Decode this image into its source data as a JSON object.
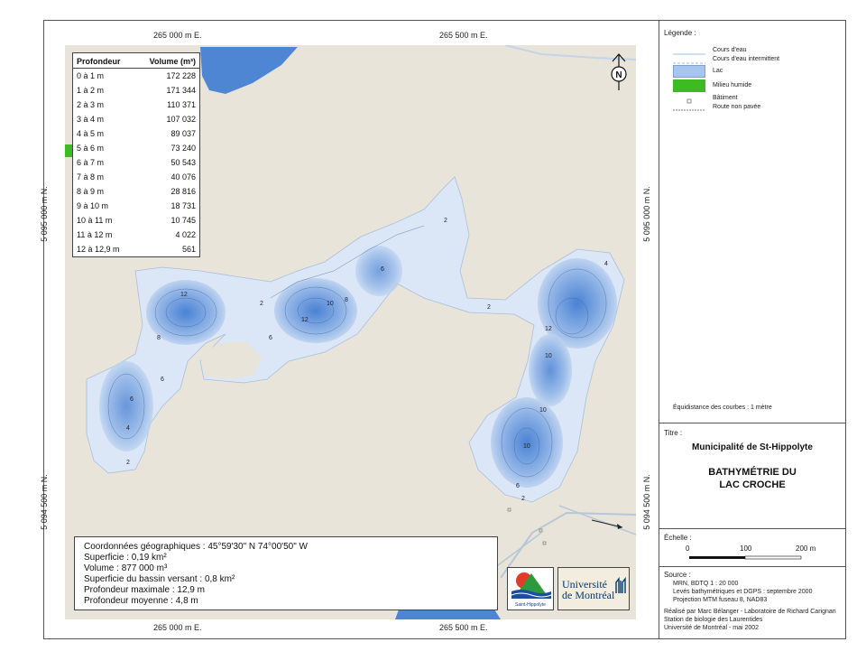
{
  "map": {
    "coords_top": [
      "265 000 m E.",
      "265 500 m E."
    ],
    "coords_bottom": [
      "265 000 m E.",
      "265 500 m E."
    ],
    "coords_left": [
      "5 095 000 m N.",
      "5 094 500 m N."
    ],
    "coords_right": [
      "5 095 000 m N.",
      "5 094 500 m N."
    ],
    "north_label": "N",
    "contour_labels": [
      "2",
      "2",
      "2",
      "2",
      "2",
      "4",
      "4",
      "6",
      "6",
      "6",
      "6",
      "6",
      "8",
      "8",
      "10",
      "10",
      "10",
      "10",
      "12",
      "12",
      "12"
    ],
    "colors": {
      "land": "#e8e4d9",
      "water": "#4f86d4",
      "lake_shallow": "#dbe7f6",
      "lake_deep": "#4e86d6",
      "wetland": "#3dbb23"
    }
  },
  "depth_table": {
    "header_depth": "Profondeur",
    "header_volume": "Volume (m³)",
    "rows": [
      {
        "depth": "0 à 1 m",
        "volume": "172 228"
      },
      {
        "depth": "1 à 2 m",
        "volume": "171 344"
      },
      {
        "depth": "2 à 3 m",
        "volume": "110 371"
      },
      {
        "depth": "3 à 4 m",
        "volume": "107 032"
      },
      {
        "depth": "4 à 5 m",
        "volume": "89 037"
      },
      {
        "depth": "5 à 6 m",
        "volume": "73 240"
      },
      {
        "depth": "6 à 7 m",
        "volume": "50 543"
      },
      {
        "depth": "7 à 8 m",
        "volume": "40 076"
      },
      {
        "depth": "8 à 9 m",
        "volume": "28 816"
      },
      {
        "depth": "9 à 10 m",
        "volume": "18 731"
      },
      {
        "depth": "10 à 11 m",
        "volume": "10 745"
      },
      {
        "depth": "11 à 12 m",
        "volume": "4 022"
      },
      {
        "depth": "12 à 12,9 m",
        "volume": "561"
      }
    ]
  },
  "info": {
    "lines": [
      "Coordonnées géographiques : 45°59'30\" N  74°00'50\" W",
      "Superficie : 0,19 km²",
      "Volume :  877 000 m³",
      "Superficie du bassin versant : 0,8 km²",
      "Profondeur maximale : 12,9 m",
      "Profondeur moyenne : 4,8 m"
    ]
  },
  "logos": {
    "st_hippolyte": "Saint-Hippolyte",
    "udem_line1": "Université",
    "udem_line2": "de Montréal"
  },
  "legend": {
    "title": "Légende :",
    "items": [
      {
        "label": "Cours d'eau"
      },
      {
        "label": "Cours d'eau intermittent"
      },
      {
        "label": "Lac"
      },
      {
        "label": "Milieu humide"
      },
      {
        "label": "Bâtiment"
      },
      {
        "label": "Route non pavée"
      }
    ],
    "equidistance": "Équidistance des courbes : 1 mètre"
  },
  "title_panel": {
    "label": "Titre :",
    "municipality": "Municipalité de St-Hippolyte",
    "title_line1": "BATHYMÉTRIE DU",
    "title_line2": "LAC CROCHE"
  },
  "scale": {
    "label": "Échelle :",
    "ticks": [
      "0",
      "100",
      "200 m"
    ]
  },
  "source": {
    "label": "Source :",
    "lines": [
      "MRN, BDTQ 1 : 20 000",
      "Levés bathymétriques et DGPS : septembre 2000",
      "Projection MTM fuseau 8, NAD83"
    ],
    "credits": [
      "Réalisé par Marc Bélanger - Laboratoire de Richard Carignan",
      "Station de biologie des Laurentides",
      "Université de Montréal - mai 2002"
    ]
  }
}
